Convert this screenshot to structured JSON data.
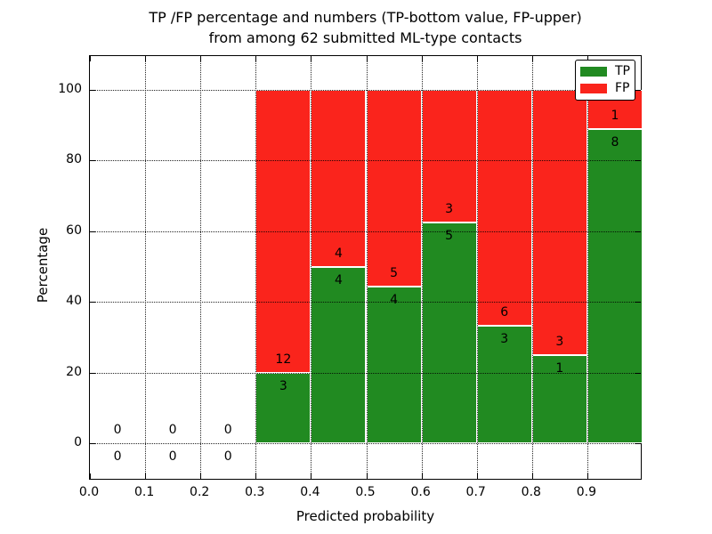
{
  "chart_data": {
    "type": "bar",
    "stacked": true,
    "title": "TP /FP percentage and numbers (TP-bottom value, FP-upper)\nfrom among 62 submitted ML-type contacts",
    "title_lines": [
      "TP /FP percentage and numbers (TP-bottom value, FP-upper)",
      "from among 62 submitted ML-type contacts"
    ],
    "xlabel": "Predicted probability",
    "ylabel": "Percentage",
    "total_contacts": 62,
    "xlim": [
      0.0,
      1.0
    ],
    "ylim": [
      -10.5,
      109.5
    ],
    "grid": true,
    "bin_width": 0.1,
    "xticks": [
      0.0,
      0.1,
      0.2,
      0.3,
      0.4,
      0.5,
      0.6,
      0.7,
      0.8,
      0.9
    ],
    "xtick_labels": [
      "0.0",
      "0.1",
      "0.2",
      "0.3",
      "0.4",
      "0.5",
      "0.6",
      "0.7",
      "0.8",
      "0.9"
    ],
    "yticks": [
      0,
      20,
      40,
      60,
      80,
      100
    ],
    "ytick_labels": [
      "0",
      "20",
      "40",
      "60",
      "80",
      "100"
    ],
    "bins": [
      {
        "start": 0.0,
        "tp": 0,
        "fp": 0,
        "tp_pct": null
      },
      {
        "start": 0.1,
        "tp": 0,
        "fp": 0,
        "tp_pct": null
      },
      {
        "start": 0.2,
        "tp": 0,
        "fp": 0,
        "tp_pct": null
      },
      {
        "start": 0.3,
        "tp": 3,
        "fp": 12,
        "tp_pct": 20.0
      },
      {
        "start": 0.4,
        "tp": 4,
        "fp": 4,
        "tp_pct": 50.0
      },
      {
        "start": 0.5,
        "tp": 4,
        "fp": 5,
        "tp_pct": 44.4
      },
      {
        "start": 0.6,
        "tp": 5,
        "fp": 3,
        "tp_pct": 62.5
      },
      {
        "start": 0.7,
        "tp": 3,
        "fp": 6,
        "tp_pct": 33.3
      },
      {
        "start": 0.8,
        "tp": 1,
        "fp": 3,
        "tp_pct": 25.0
      },
      {
        "start": 0.9,
        "tp": 8,
        "fp": 1,
        "tp_pct": 88.9
      }
    ],
    "series": [
      {
        "name": "TP",
        "color": "#218a21",
        "position": "bottom"
      },
      {
        "name": "FP",
        "color": "#fa241c",
        "position": "top"
      }
    ],
    "legend": {
      "position": "upper right",
      "entries": [
        {
          "label": "TP",
          "color": "#218a21"
        },
        {
          "label": "FP",
          "color": "#fa241c"
        }
      ]
    }
  }
}
